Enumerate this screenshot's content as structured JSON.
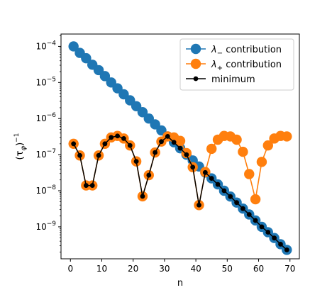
{
  "chart_data": {
    "type": "line",
    "title": "",
    "xlabel": "n",
    "ylabel": "(τ_φ)⁻¹",
    "ylabel_parts": {
      "base": "(τ",
      "sub": "φ",
      "close": ")",
      "sup": "−1"
    },
    "yscale": "log",
    "xlim": [
      -3,
      73
    ],
    "ylim": [
      1.3e-10,
      0.00022
    ],
    "xticks": [
      0,
      10,
      20,
      30,
      40,
      50,
      60,
      70
    ],
    "yticks": [
      {
        "value": 1e-09,
        "base": "10",
        "exp": "−9"
      },
      {
        "value": 1e-08,
        "base": "10",
        "exp": "−8"
      },
      {
        "value": 1e-07,
        "base": "10",
        "exp": "−7"
      },
      {
        "value": 1e-06,
        "base": "10",
        "exp": "−6"
      },
      {
        "value": 1e-05,
        "base": "10",
        "exp": "−5"
      },
      {
        "value": 0.0001,
        "base": "10",
        "exp": "−4"
      }
    ],
    "legend_position": "top-right",
    "x": [
      1,
      3,
      5,
      7,
      9,
      11,
      13,
      15,
      17,
      19,
      21,
      23,
      25,
      27,
      29,
      31,
      33,
      35,
      37,
      39,
      41,
      43,
      45,
      47,
      49,
      51,
      53,
      55,
      57,
      59,
      61,
      63,
      65,
      67,
      69
    ],
    "series": [
      {
        "name_sym": "λ",
        "name_sub": "−",
        "name_text": " contribution",
        "color": "#1f77b4",
        "marker_size": "large",
        "values": [
          0.0001,
          6.6e-05,
          4.7e-05,
          3.1e-05,
          2.2e-05,
          1.5e-05,
          1e-05,
          6.9e-06,
          4.7e-06,
          3.2e-06,
          2.2e-06,
          1.5e-06,
          1e-06,
          6.9e-07,
          4.7e-07,
          3.2e-07,
          2.2e-07,
          1.5e-07,
          1e-07,
          6.9e-08,
          4.7e-08,
          3.2e-08,
          2.2e-08,
          1.5e-08,
          1e-08,
          6.9e-09,
          4.7e-09,
          3.2e-09,
          2.2e-09,
          1.5e-09,
          1e-09,
          7.1e-10,
          4.9e-10,
          3.3e-10,
          2.3e-10
        ]
      },
      {
        "name_sym": "λ",
        "name_sub": "+",
        "name_text": " contribution",
        "color": "#ff7f0e",
        "marker_size": "large",
        "values": [
          2e-07,
          9.5e-08,
          1.4e-08,
          1.4e-08,
          9.5e-08,
          2e-07,
          3e-07,
          3.3e-07,
          2.8e-07,
          1.8e-07,
          6.5e-08,
          7e-09,
          2.7e-08,
          1.15e-07,
          2.3e-07,
          3.2e-07,
          3e-07,
          2.4e-07,
          1.1e-07,
          4.5e-08,
          4e-09,
          3.3e-08,
          1.45e-07,
          2.6e-07,
          3.3e-07,
          3.2e-07,
          2.6e-07,
          1.2e-07,
          2.9e-08,
          5.8e-09,
          6.3e-08,
          1.8e-07,
          2.8e-07,
          3.3e-07,
          3.2e-07
        ]
      },
      {
        "name_sym": "",
        "name_sub": "",
        "name_text": "minimum",
        "color": "#000000",
        "marker_size": "small",
        "values": [
          2e-07,
          9.5e-08,
          1.4e-08,
          1.4e-08,
          9.5e-08,
          2e-07,
          3e-07,
          3.3e-07,
          2.8e-07,
          1.8e-07,
          6.5e-08,
          7e-09,
          2.7e-08,
          1.15e-07,
          2.3e-07,
          3.2e-07,
          2.2e-07,
          1.5e-07,
          1e-07,
          4.5e-08,
          4e-09,
          3.2e-08,
          2.2e-08,
          1.5e-08,
          1e-08,
          6.9e-09,
          4.7e-09,
          3.2e-09,
          2.2e-09,
          1.5e-09,
          1e-09,
          7.1e-10,
          4.9e-10,
          3.3e-10,
          2.3e-10
        ]
      }
    ]
  }
}
